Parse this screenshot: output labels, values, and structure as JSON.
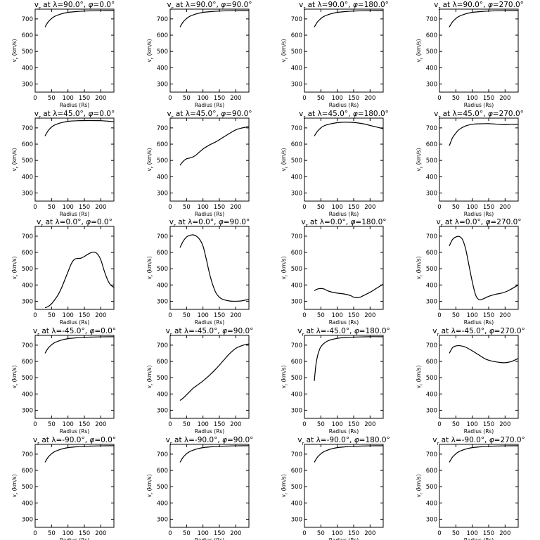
{
  "chart_data": [
    {
      "type": "line",
      "title": "v_r at λ=90.0°, φ=0.0°",
      "title_parts": {
        "lambda": "90.0",
        "phi": "0.0"
      },
      "xlabel": "Radius (Rs)",
      "ylabel": "v_r (km/s)",
      "xlim": [
        0,
        240
      ],
      "ylim": [
        250,
        760
      ],
      "xticks": [
        0,
        50,
        100,
        150,
        200
      ],
      "yticks": [
        300,
        400,
        500,
        600,
        700
      ],
      "x": [
        30,
        40,
        50,
        60,
        80,
        100,
        130,
        160,
        200,
        240
      ],
      "y": [
        650,
        682,
        702,
        716,
        731,
        740,
        746,
        749,
        751,
        752
      ]
    },
    {
      "type": "line",
      "title": "v_r at λ=90.0°, φ=90.0°",
      "title_parts": {
        "lambda": "90.0",
        "phi": "90.0"
      },
      "xlabel": "Radius (Rs)",
      "ylabel": "v_r (km/s)",
      "xlim": [
        0,
        240
      ],
      "ylim": [
        250,
        760
      ],
      "xticks": [
        0,
        50,
        100,
        150,
        200
      ],
      "yticks": [
        300,
        400,
        500,
        600,
        700
      ],
      "x": [
        30,
        40,
        50,
        60,
        80,
        100,
        130,
        160,
        200,
        240
      ],
      "y": [
        650,
        682,
        702,
        716,
        731,
        740,
        746,
        749,
        751,
        752
      ]
    },
    {
      "type": "line",
      "title": "v_r at λ=90.0°, φ=180.0°",
      "title_parts": {
        "lambda": "90.0",
        "phi": "180.0"
      },
      "xlabel": "Radius (Rs)",
      "ylabel": "v_r (km/s)",
      "xlim": [
        0,
        240
      ],
      "ylim": [
        250,
        760
      ],
      "xticks": [
        0,
        50,
        100,
        150,
        200
      ],
      "yticks": [
        300,
        400,
        500,
        600,
        700
      ],
      "x": [
        30,
        40,
        50,
        60,
        80,
        100,
        130,
        160,
        200,
        240
      ],
      "y": [
        650,
        682,
        702,
        716,
        731,
        740,
        746,
        749,
        751,
        752
      ]
    },
    {
      "type": "line",
      "title": "v_r at λ=90.0°, φ=270.0°",
      "title_parts": {
        "lambda": "90.0",
        "phi": "270.0"
      },
      "xlabel": "Radius (Rs)",
      "ylabel": "v_r (km/s)",
      "xlim": [
        0,
        240
      ],
      "ylim": [
        250,
        760
      ],
      "xticks": [
        0,
        50,
        100,
        150,
        200
      ],
      "yticks": [
        300,
        400,
        500,
        600,
        700
      ],
      "x": [
        30,
        40,
        50,
        60,
        80,
        100,
        130,
        160,
        200,
        240
      ],
      "y": [
        650,
        682,
        702,
        716,
        731,
        740,
        746,
        749,
        751,
        752
      ]
    },
    {
      "type": "line",
      "title": "v_r at λ=45.0°, φ=0.0°",
      "title_parts": {
        "lambda": "45.0",
        "phi": "0.0"
      },
      "xlabel": "Radius (Rs)",
      "ylabel": "v_r (km/s)",
      "xlim": [
        0,
        240
      ],
      "ylim": [
        250,
        760
      ],
      "xticks": [
        0,
        50,
        100,
        150,
        200
      ],
      "yticks": [
        300,
        400,
        500,
        600,
        700
      ],
      "x": [
        30,
        40,
        50,
        60,
        80,
        100,
        130,
        160,
        200,
        240
      ],
      "y": [
        650,
        684,
        705,
        718,
        732,
        740,
        744,
        745,
        744,
        738
      ]
    },
    {
      "type": "line",
      "title": "v_r at λ=45.0°, φ=90.0°",
      "title_parts": {
        "lambda": "45.0",
        "phi": "90.0"
      },
      "xlabel": "Radius (Rs)",
      "ylabel": "v_r (km/s)",
      "xlim": [
        0,
        240
      ],
      "ylim": [
        250,
        760
      ],
      "xticks": [
        0,
        50,
        100,
        150,
        200
      ],
      "yticks": [
        300,
        400,
        500,
        600,
        700
      ],
      "x": [
        30,
        40,
        50,
        60,
        70,
        80,
        100,
        120,
        140,
        160,
        180,
        200,
        220,
        240
      ],
      "y": [
        470,
        495,
        510,
        515,
        522,
        535,
        570,
        595,
        615,
        640,
        665,
        688,
        700,
        708
      ]
    },
    {
      "type": "line",
      "title": "v_r at λ=45.0°, φ=180.0°",
      "title_parts": {
        "lambda": "45.0",
        "phi": "180.0"
      },
      "xlabel": "Radius (Rs)",
      "ylabel": "v_r (km/s)",
      "xlim": [
        0,
        240
      ],
      "ylim": [
        250,
        760
      ],
      "xticks": [
        0,
        50,
        100,
        150,
        200
      ],
      "yticks": [
        300,
        400,
        500,
        600,
        700
      ],
      "x": [
        30,
        40,
        50,
        60,
        80,
        100,
        120,
        150,
        180,
        200,
        220,
        240
      ],
      "y": [
        650,
        680,
        700,
        713,
        725,
        732,
        735,
        733,
        725,
        715,
        705,
        695
      ]
    },
    {
      "type": "line",
      "title": "v_r at λ=45.0°, φ=270.0°",
      "title_parts": {
        "lambda": "45.0",
        "phi": "270.0"
      },
      "xlabel": "Radius (Rs)",
      "ylabel": "v_r (km/s)",
      "xlim": [
        0,
        240
      ],
      "ylim": [
        250,
        760
      ],
      "xticks": [
        0,
        50,
        100,
        150,
        200
      ],
      "yticks": [
        300,
        400,
        500,
        600,
        700
      ],
      "x": [
        30,
        40,
        50,
        60,
        80,
        100,
        120,
        150,
        180,
        200,
        220,
        240
      ],
      "y": [
        590,
        640,
        668,
        690,
        712,
        722,
        725,
        726,
        722,
        720,
        722,
        723
      ]
    },
    {
      "type": "line",
      "title": "v_r at λ=0.0°, φ=0.0°",
      "title_parts": {
        "lambda": "0.0",
        "phi": "0.0"
      },
      "xlabel": "Radius (Rs)",
      "ylabel": "v_r (km/s)",
      "xlim": [
        0,
        240
      ],
      "ylim": [
        250,
        760
      ],
      "xticks": [
        0,
        50,
        100,
        150,
        200
      ],
      "yticks": [
        300,
        400,
        500,
        600,
        700
      ],
      "x": [
        30,
        40,
        50,
        60,
        70,
        80,
        90,
        100,
        110,
        120,
        130,
        140,
        150,
        160,
        170,
        180,
        190,
        200,
        210,
        220,
        230,
        240
      ],
      "y": [
        260,
        268,
        285,
        310,
        340,
        380,
        430,
        480,
        530,
        558,
        563,
        565,
        575,
        588,
        598,
        602,
        590,
        555,
        490,
        435,
        400,
        385
      ]
    },
    {
      "type": "line",
      "title": "v_r at λ=0.0°, φ=90.0°",
      "title_parts": {
        "lambda": "0.0",
        "phi": "90.0"
      },
      "xlabel": "Radius (Rs)",
      "ylabel": "v_r (km/s)",
      "xlim": [
        0,
        240
      ],
      "ylim": [
        250,
        760
      ],
      "xticks": [
        0,
        50,
        100,
        150,
        200
      ],
      "yticks": [
        300,
        400,
        500,
        600,
        700
      ],
      "x": [
        30,
        40,
        50,
        60,
        70,
        80,
        90,
        100,
        110,
        120,
        130,
        140,
        150,
        160,
        180,
        200,
        220,
        240
      ],
      "y": [
        630,
        670,
        695,
        705,
        708,
        700,
        680,
        640,
        560,
        470,
        400,
        350,
        325,
        312,
        302,
        300,
        303,
        312
      ]
    },
    {
      "type": "line",
      "title": "v_r at λ=0.0°, φ=180.0°",
      "title_parts": {
        "lambda": "0.0",
        "phi": "180.0"
      },
      "xlabel": "Radius (Rs)",
      "ylabel": "v_r (km/s)",
      "xlim": [
        0,
        240
      ],
      "ylim": [
        250,
        760
      ],
      "xticks": [
        0,
        50,
        100,
        150,
        200
      ],
      "yticks": [
        300,
        400,
        500,
        600,
        700
      ],
      "x": [
        30,
        40,
        50,
        60,
        70,
        80,
        100,
        120,
        140,
        150,
        160,
        170,
        180,
        200,
        220,
        240
      ],
      "y": [
        365,
        375,
        378,
        375,
        365,
        358,
        350,
        345,
        335,
        325,
        322,
        325,
        335,
        355,
        380,
        405
      ]
    },
    {
      "type": "line",
      "title": "v_r at λ=0.0°, φ=270.0°",
      "title_parts": {
        "lambda": "0.0",
        "phi": "270.0"
      },
      "xlabel": "Radius (Rs)",
      "ylabel": "v_r (km/s)",
      "xlim": [
        0,
        240
      ],
      "ylim": [
        250,
        760
      ],
      "xticks": [
        0,
        50,
        100,
        150,
        200
      ],
      "yticks": [
        300,
        400,
        500,
        600,
        700
      ],
      "x": [
        30,
        40,
        50,
        60,
        70,
        80,
        90,
        100,
        110,
        120,
        130,
        150,
        170,
        190,
        210,
        240
      ],
      "y": [
        640,
        680,
        695,
        698,
        680,
        620,
        520,
        420,
        340,
        310,
        312,
        330,
        342,
        350,
        365,
        400
      ]
    },
    {
      "type": "line",
      "title": "v_r at λ=-45.0°, φ=0.0°",
      "title_parts": {
        "lambda": "-45.0",
        "phi": "0.0"
      },
      "xlabel": "Radius (Rs)",
      "ylabel": "v_r (km/s)",
      "xlim": [
        0,
        240
      ],
      "ylim": [
        250,
        760
      ],
      "xticks": [
        0,
        50,
        100,
        150,
        200
      ],
      "yticks": [
        300,
        400,
        500,
        600,
        700
      ],
      "x": [
        30,
        40,
        50,
        60,
        80,
        100,
        130,
        160,
        200,
        240
      ],
      "y": [
        650,
        682,
        702,
        716,
        731,
        740,
        746,
        749,
        751,
        752
      ]
    },
    {
      "type": "line",
      "title": "v_r at λ=-45.0°, φ=90.0°",
      "title_parts": {
        "lambda": "-45.0",
        "phi": "90.0"
      },
      "xlabel": "Radius (Rs)",
      "ylabel": "v_r (km/s)",
      "xlim": [
        0,
        240
      ],
      "ylim": [
        250,
        760
      ],
      "xticks": [
        0,
        50,
        100,
        150,
        200
      ],
      "yticks": [
        300,
        400,
        500,
        600,
        700
      ],
      "x": [
        30,
        40,
        50,
        60,
        70,
        80,
        100,
        120,
        140,
        160,
        180,
        200,
        220,
        240
      ],
      "y": [
        360,
        375,
        395,
        415,
        435,
        450,
        480,
        515,
        555,
        600,
        645,
        680,
        698,
        708
      ]
    },
    {
      "type": "line",
      "title": "v_r at λ=-45.0°, φ=180.0°",
      "title_parts": {
        "lambda": "-45.0",
        "phi": "180.0"
      },
      "xlabel": "Radius (Rs)",
      "ylabel": "v_r (km/s)",
      "xlim": [
        0,
        240
      ],
      "ylim": [
        250,
        760
      ],
      "xticks": [
        0,
        50,
        100,
        150,
        200
      ],
      "yticks": [
        300,
        400,
        500,
        600,
        700
      ],
      "x": [
        30,
        35,
        40,
        45,
        50,
        60,
        70,
        80,
        100,
        130,
        160,
        200,
        240
      ],
      "y": [
        480,
        580,
        635,
        668,
        690,
        712,
        725,
        733,
        742,
        748,
        750,
        752,
        752
      ]
    },
    {
      "type": "line",
      "title": "v_r at λ=-45.0°, φ=270.0°",
      "title_parts": {
        "lambda": "-45.0",
        "phi": "270.0"
      },
      "xlabel": "Radius (Rs)",
      "ylabel": "v_r (km/s)",
      "xlim": [
        0,
        240
      ],
      "ylim": [
        250,
        760
      ],
      "xticks": [
        0,
        50,
        100,
        150,
        200
      ],
      "yticks": [
        300,
        400,
        500,
        600,
        700
      ],
      "x": [
        30,
        40,
        50,
        60,
        70,
        80,
        100,
        120,
        140,
        160,
        180,
        200,
        220,
        240
      ],
      "y": [
        650,
        685,
        695,
        697,
        694,
        687,
        665,
        640,
        615,
        602,
        595,
        592,
        600,
        618
      ]
    },
    {
      "type": "line",
      "title": "v_r at λ=-90.0°, φ=0.0°",
      "title_parts": {
        "lambda": "-90.0",
        "phi": "0.0"
      },
      "xlabel": "Radius (Rs)",
      "ylabel": "v_r (km/s)",
      "xlim": [
        0,
        240
      ],
      "ylim": [
        250,
        760
      ],
      "xticks": [
        0,
        50,
        100,
        150,
        200
      ],
      "yticks": [
        300,
        400,
        500,
        600,
        700
      ],
      "x": [
        30,
        40,
        50,
        60,
        80,
        100,
        130,
        160,
        200,
        240
      ],
      "y": [
        650,
        682,
        702,
        716,
        731,
        740,
        746,
        749,
        751,
        752
      ]
    },
    {
      "type": "line",
      "title": "v_r at λ=-90.0°, φ=90.0°",
      "title_parts": {
        "lambda": "-90.0",
        "phi": "90.0"
      },
      "xlabel": "Radius (Rs)",
      "ylabel": "v_r (km/s)",
      "xlim": [
        0,
        240
      ],
      "ylim": [
        250,
        760
      ],
      "xticks": [
        0,
        50,
        100,
        150,
        200
      ],
      "yticks": [
        300,
        400,
        500,
        600,
        700
      ],
      "x": [
        30,
        40,
        50,
        60,
        80,
        100,
        130,
        160,
        200,
        240
      ],
      "y": [
        650,
        682,
        702,
        716,
        731,
        740,
        746,
        749,
        751,
        752
      ]
    },
    {
      "type": "line",
      "title": "v_r at λ=-90.0°, φ=180.0°",
      "title_parts": {
        "lambda": "-90.0",
        "phi": "180.0"
      },
      "xlabel": "Radius (Rs)",
      "ylabel": "v_r (km/s)",
      "xlim": [
        0,
        240
      ],
      "ylim": [
        250,
        760
      ],
      "xticks": [
        0,
        50,
        100,
        150,
        200
      ],
      "yticks": [
        300,
        400,
        500,
        600,
        700
      ],
      "x": [
        30,
        40,
        50,
        60,
        80,
        100,
        130,
        160,
        200,
        240
      ],
      "y": [
        650,
        682,
        702,
        716,
        731,
        740,
        746,
        749,
        751,
        752
      ]
    },
    {
      "type": "line",
      "title": "v_r at λ=-90.0°, φ=270.0°",
      "title_parts": {
        "lambda": "-90.0",
        "phi": "270.0"
      },
      "xlabel": "Radius (Rs)",
      "ylabel": "v_r (km/s)",
      "xlim": [
        0,
        240
      ],
      "ylim": [
        250,
        760
      ],
      "xticks": [
        0,
        50,
        100,
        150,
        200
      ],
      "yticks": [
        300,
        400,
        500,
        600,
        700
      ],
      "x": [
        30,
        40,
        50,
        60,
        80,
        100,
        130,
        160,
        200,
        240
      ],
      "y": [
        650,
        682,
        702,
        716,
        731,
        740,
        746,
        749,
        751,
        752
      ]
    }
  ]
}
